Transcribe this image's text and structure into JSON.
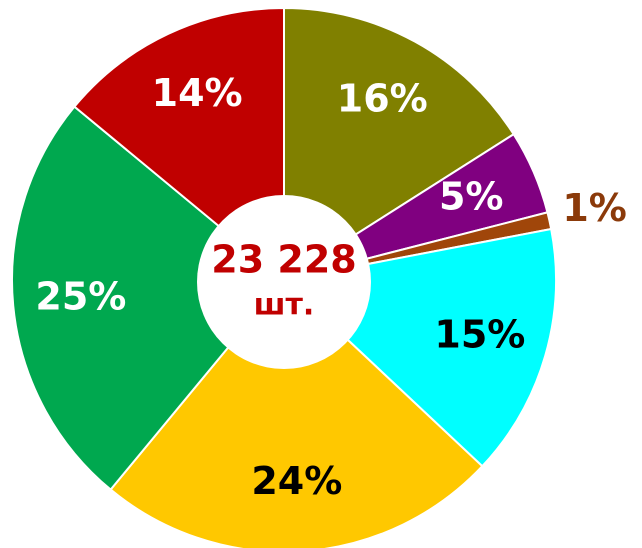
{
  "chart_data": {
    "type": "pie",
    "values": [
      16,
      5,
      1,
      15,
      24,
      25,
      14
    ],
    "value_labels": [
      "16%",
      "5%",
      "1%",
      "15%",
      "24%",
      "25%",
      "14%"
    ],
    "colors": [
      "#808000",
      "#800080",
      "#a0460a",
      "#00ffff",
      "#ffc800",
      "#00a84f",
      "#c00000"
    ],
    "label_colors": [
      "#ffffff",
      "#ffffff",
      "#8b3a0a",
      "#000000",
      "#000000",
      "#ffffff",
      "#ffffff"
    ],
    "center_label": [
      "23 228",
      "шт."
    ]
  }
}
